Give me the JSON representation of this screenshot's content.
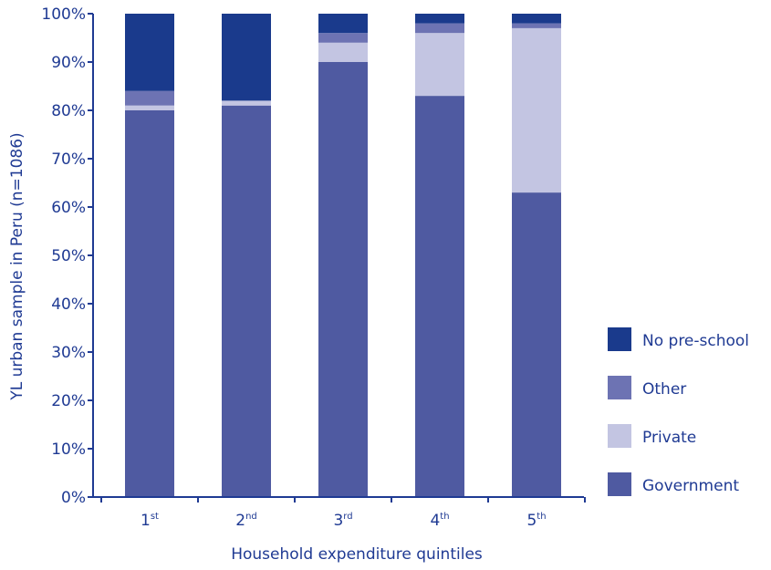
{
  "chart_data": {
    "type": "bar",
    "stacked": true,
    "categories": [
      {
        "main": "1",
        "suffix": "st"
      },
      {
        "main": "2",
        "suffix": "nd"
      },
      {
        "main": "3",
        "suffix": "rd"
      },
      {
        "main": "4",
        "suffix": "th"
      },
      {
        "main": "5",
        "suffix": "th"
      }
    ],
    "series": [
      {
        "name": "Government",
        "color": "#4f5aa1",
        "values": [
          80,
          81,
          90,
          83,
          63
        ]
      },
      {
        "name": "Private",
        "color": "#c3c5e2",
        "values": [
          1,
          1,
          4,
          13,
          34
        ]
      },
      {
        "name": "Other",
        "color": "#6d73b3",
        "values": [
          3,
          0,
          2,
          2,
          1
        ]
      },
      {
        "name": "No pre-school",
        "color": "#1a3a8c",
        "values": [
          16,
          18,
          4,
          2,
          2
        ]
      }
    ],
    "legend_order": [
      "No pre-school",
      "Other",
      "Private",
      "Government"
    ],
    "legend_position": "right",
    "xlabel": "Household expenditure quintiles",
    "ylabel": "YL urban sample in Peru (n=1086)",
    "ylim": [
      0,
      100
    ],
    "yticks": [
      "0%",
      "10%",
      "20%",
      "30%",
      "40%",
      "50%",
      "60%",
      "70%",
      "80%",
      "90%",
      "100%"
    ],
    "grid": false,
    "axis_color": "#1f3a93"
  }
}
